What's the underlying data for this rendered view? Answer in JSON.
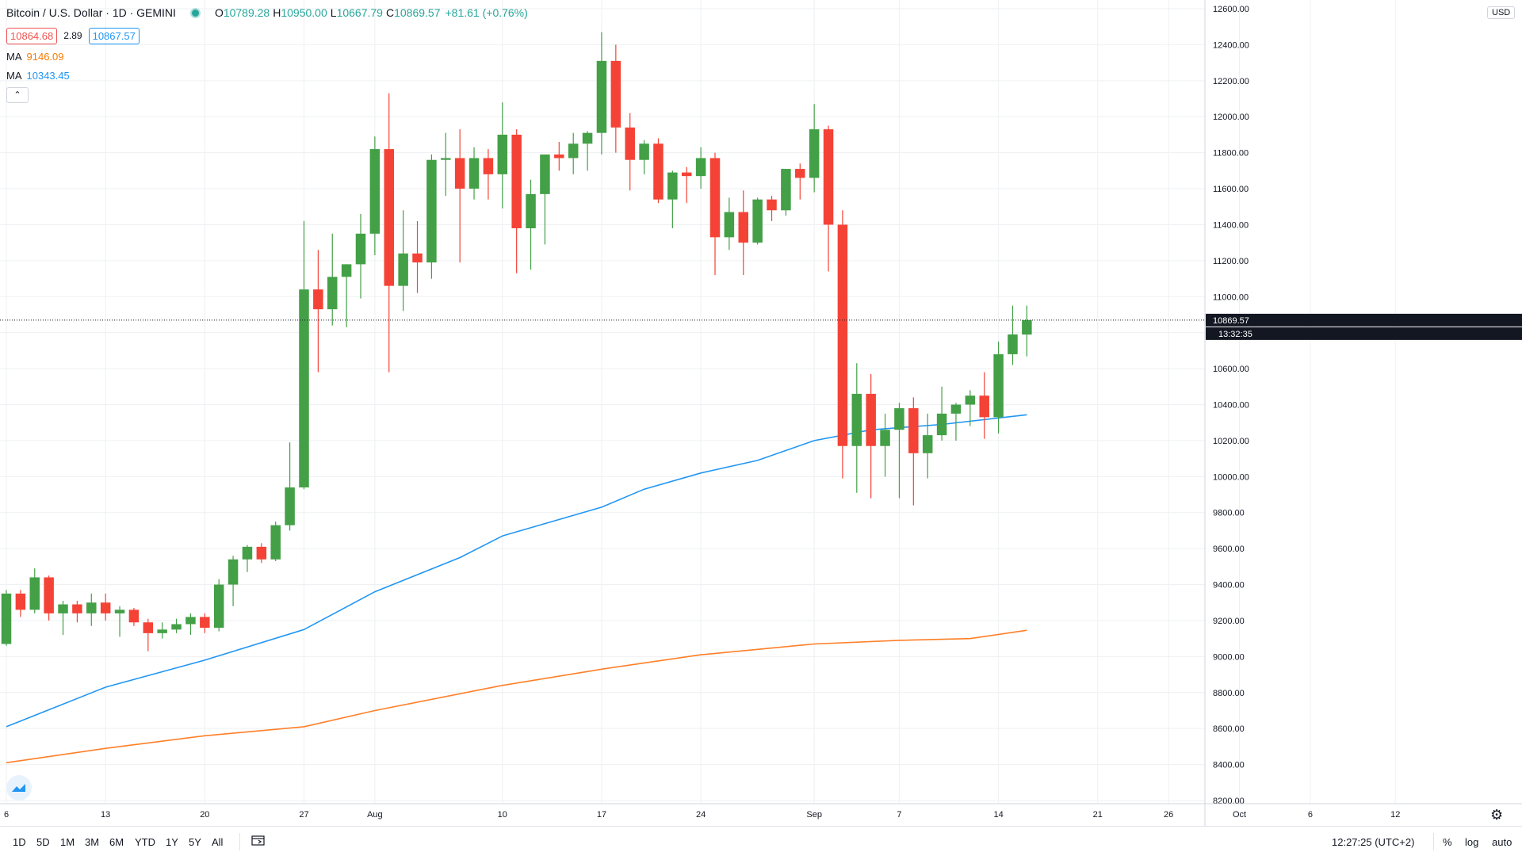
{
  "header": {
    "symbol_title": "Bitcoin / U.S. Dollar · 1D · GEMINI",
    "ohlc": {
      "open_label": "O",
      "open": "10789.28",
      "high_label": "H",
      "high": "10950.00",
      "low_label": "L",
      "low": "10667.79",
      "close_label": "C",
      "close": "10869.57",
      "change": "+81.61 (+0.76%)"
    },
    "bid": "10864.68",
    "spread": "2.89",
    "ask": "10867.57",
    "ma_orange_label": "MA",
    "ma_orange_value": "9146.09",
    "ma_blue_label": "MA",
    "ma_blue_value": "10343.45",
    "collapse_icon": "chevron-up-icon"
  },
  "price_axis": {
    "currency_button": "USD",
    "last_price_label": "10869.57",
    "countdown_label": "13:32:35",
    "settings_icon": "gear-icon"
  },
  "bottom_bar": {
    "ranges": [
      "1D",
      "5D",
      "1M",
      "3M",
      "6M",
      "YTD",
      "1Y",
      "5Y",
      "All"
    ],
    "date_range_icon": "calendar-icon",
    "time": "12:27:25 (UTC+2)",
    "percent_label": "%",
    "log_label": "log",
    "auto_label": "auto"
  },
  "colors": {
    "up": "#43a047",
    "down": "#f44336",
    "ma_orange": "#ff7f27",
    "ma_blue": "#2196f3",
    "grid": "#eef0f3",
    "last_price_line": "#131722"
  },
  "chart_data": {
    "type": "candlestick",
    "symbol": "Bitcoin / U.S. Dollar",
    "interval": "1D",
    "exchange": "GEMINI",
    "ylim": [
      8200,
      12600
    ],
    "y_ticks": [
      "8200.00",
      "8400.00",
      "8600.00",
      "8800.00",
      "9000.00",
      "9200.00",
      "9400.00",
      "9600.00",
      "9800.00",
      "10000.00",
      "10200.00",
      "10400.00",
      "10600.00",
      "10800.00",
      "11000.00",
      "11200.00",
      "11400.00",
      "11600.00",
      "11800.00",
      "12000.00",
      "12200.00",
      "12400.00",
      "12600.00"
    ],
    "y_ticks_values": [
      8200,
      8400,
      8600,
      8800,
      9000,
      9200,
      9400,
      9600,
      9800,
      10000,
      10200,
      10400,
      10600,
      10800,
      11000,
      11200,
      11400,
      11600,
      11800,
      12000,
      12200,
      12400,
      12600
    ],
    "x_ticks": [
      {
        "label": "6",
        "date": "2020-07-06"
      },
      {
        "label": "13",
        "date": "2020-07-13"
      },
      {
        "label": "20",
        "date": "2020-07-20"
      },
      {
        "label": "27",
        "date": "2020-07-27"
      },
      {
        "label": "Aug",
        "date": "2020-08-01"
      },
      {
        "label": "10",
        "date": "2020-08-10"
      },
      {
        "label": "17",
        "date": "2020-08-17"
      },
      {
        "label": "24",
        "date": "2020-08-24"
      },
      {
        "label": "Sep",
        "date": "2020-09-01"
      },
      {
        "label": "7",
        "date": "2020-09-07"
      },
      {
        "label": "14",
        "date": "2020-09-14"
      },
      {
        "label": "21",
        "date": "2020-09-21"
      },
      {
        "label": "26",
        "date": "2020-09-26"
      },
      {
        "label": "Oct",
        "date": "2020-10-01"
      },
      {
        "label": "6",
        "date": "2020-10-06"
      },
      {
        "label": "12",
        "date": "2020-10-12"
      }
    ],
    "x_range": [
      "2020-07-06",
      "2020-10-20"
    ],
    "last_price": 10869.57,
    "candles": [
      {
        "date": "2020-07-06",
        "o": 9070,
        "h": 9370,
        "l": 9060,
        "c": 9350
      },
      {
        "date": "2020-07-07",
        "o": 9350,
        "h": 9370,
        "l": 9220,
        "c": 9260
      },
      {
        "date": "2020-07-08",
        "o": 9260,
        "h": 9490,
        "l": 9240,
        "c": 9440
      },
      {
        "date": "2020-07-09",
        "o": 9440,
        "h": 9450,
        "l": 9200,
        "c": 9240
      },
      {
        "date": "2020-07-10",
        "o": 9240,
        "h": 9310,
        "l": 9120,
        "c": 9290
      },
      {
        "date": "2020-07-11",
        "o": 9290,
        "h": 9310,
        "l": 9190,
        "c": 9240
      },
      {
        "date": "2020-07-12",
        "o": 9240,
        "h": 9350,
        "l": 9170,
        "c": 9300
      },
      {
        "date": "2020-07-13",
        "o": 9300,
        "h": 9350,
        "l": 9200,
        "c": 9240
      },
      {
        "date": "2020-07-14",
        "o": 9240,
        "h": 9280,
        "l": 9110,
        "c": 9260
      },
      {
        "date": "2020-07-15",
        "o": 9260,
        "h": 9270,
        "l": 9170,
        "c": 9190
      },
      {
        "date": "2020-07-16",
        "o": 9190,
        "h": 9210,
        "l": 9030,
        "c": 9130
      },
      {
        "date": "2020-07-17",
        "o": 9130,
        "h": 9190,
        "l": 9100,
        "c": 9150
      },
      {
        "date": "2020-07-18",
        "o": 9150,
        "h": 9210,
        "l": 9130,
        "c": 9180
      },
      {
        "date": "2020-07-19",
        "o": 9180,
        "h": 9240,
        "l": 9120,
        "c": 9220
      },
      {
        "date": "2020-07-20",
        "o": 9220,
        "h": 9240,
        "l": 9130,
        "c": 9160
      },
      {
        "date": "2020-07-21",
        "o": 9160,
        "h": 9430,
        "l": 9140,
        "c": 9400
      },
      {
        "date": "2020-07-22",
        "o": 9400,
        "h": 9560,
        "l": 9280,
        "c": 9540
      },
      {
        "date": "2020-07-23",
        "o": 9540,
        "h": 9620,
        "l": 9470,
        "c": 9610
      },
      {
        "date": "2020-07-24",
        "o": 9610,
        "h": 9630,
        "l": 9520,
        "c": 9540
      },
      {
        "date": "2020-07-25",
        "o": 9540,
        "h": 9750,
        "l": 9530,
        "c": 9730
      },
      {
        "date": "2020-07-26",
        "o": 9730,
        "h": 10190,
        "l": 9700,
        "c": 9940
      },
      {
        "date": "2020-07-27",
        "o": 9940,
        "h": 11420,
        "l": 9930,
        "c": 11040
      },
      {
        "date": "2020-07-28",
        "o": 11040,
        "h": 11260,
        "l": 10580,
        "c": 10930
      },
      {
        "date": "2020-07-29",
        "o": 10930,
        "h": 11350,
        "l": 10840,
        "c": 11110
      },
      {
        "date": "2020-07-30",
        "o": 11110,
        "h": 11180,
        "l": 10830,
        "c": 11180
      },
      {
        "date": "2020-07-31",
        "o": 11180,
        "h": 11460,
        "l": 10990,
        "c": 11350
      },
      {
        "date": "2020-08-01",
        "o": 11350,
        "h": 11890,
        "l": 11230,
        "c": 11820
      },
      {
        "date": "2020-08-02",
        "o": 11820,
        "h": 12130,
        "l": 10580,
        "c": 11060
      },
      {
        "date": "2020-08-03",
        "o": 11060,
        "h": 11480,
        "l": 10920,
        "c": 11240
      },
      {
        "date": "2020-08-04",
        "o": 11240,
        "h": 11420,
        "l": 11020,
        "c": 11190
      },
      {
        "date": "2020-08-05",
        "o": 11190,
        "h": 11790,
        "l": 11100,
        "c": 11760
      },
      {
        "date": "2020-08-06",
        "o": 11760,
        "h": 11910,
        "l": 11560,
        "c": 11770
      },
      {
        "date": "2020-08-07",
        "o": 11770,
        "h": 11930,
        "l": 11190,
        "c": 11600
      },
      {
        "date": "2020-08-08",
        "o": 11600,
        "h": 11830,
        "l": 11540,
        "c": 11770
      },
      {
        "date": "2020-08-09",
        "o": 11770,
        "h": 11820,
        "l": 11540,
        "c": 11680
      },
      {
        "date": "2020-08-10",
        "o": 11680,
        "h": 12080,
        "l": 11490,
        "c": 11900
      },
      {
        "date": "2020-08-11",
        "o": 11900,
        "h": 11930,
        "l": 11130,
        "c": 11380
      },
      {
        "date": "2020-08-12",
        "o": 11380,
        "h": 11650,
        "l": 11150,
        "c": 11570
      },
      {
        "date": "2020-08-13",
        "o": 11570,
        "h": 11790,
        "l": 11290,
        "c": 11790
      },
      {
        "date": "2020-08-14",
        "o": 11790,
        "h": 11860,
        "l": 11700,
        "c": 11770
      },
      {
        "date": "2020-08-15",
        "o": 11770,
        "h": 11910,
        "l": 11680,
        "c": 11850
      },
      {
        "date": "2020-08-16",
        "o": 11850,
        "h": 11920,
        "l": 11700,
        "c": 11910
      },
      {
        "date": "2020-08-17",
        "o": 11910,
        "h": 12470,
        "l": 11790,
        "c": 12310
      },
      {
        "date": "2020-08-18",
        "o": 12310,
        "h": 12400,
        "l": 11800,
        "c": 11940
      },
      {
        "date": "2020-08-19",
        "o": 11940,
        "h": 12020,
        "l": 11590,
        "c": 11760
      },
      {
        "date": "2020-08-20",
        "o": 11760,
        "h": 11870,
        "l": 11680,
        "c": 11850
      },
      {
        "date": "2020-08-21",
        "o": 11850,
        "h": 11880,
        "l": 11520,
        "c": 11540
      },
      {
        "date": "2020-08-22",
        "o": 11540,
        "h": 11700,
        "l": 11380,
        "c": 11690
      },
      {
        "date": "2020-08-23",
        "o": 11690,
        "h": 11720,
        "l": 11520,
        "c": 11670
      },
      {
        "date": "2020-08-24",
        "o": 11670,
        "h": 11830,
        "l": 11600,
        "c": 11770
      },
      {
        "date": "2020-08-25",
        "o": 11770,
        "h": 11800,
        "l": 11120,
        "c": 11330
      },
      {
        "date": "2020-08-26",
        "o": 11330,
        "h": 11550,
        "l": 11260,
        "c": 11470
      },
      {
        "date": "2020-08-27",
        "o": 11470,
        "h": 11590,
        "l": 11120,
        "c": 11300
      },
      {
        "date": "2020-08-28",
        "o": 11300,
        "h": 11550,
        "l": 11290,
        "c": 11540
      },
      {
        "date": "2020-08-29",
        "o": 11540,
        "h": 11560,
        "l": 11420,
        "c": 11480
      },
      {
        "date": "2020-08-30",
        "o": 11480,
        "h": 11710,
        "l": 11450,
        "c": 11710
      },
      {
        "date": "2020-08-31",
        "o": 11710,
        "h": 11740,
        "l": 11540,
        "c": 11660
      },
      {
        "date": "2020-09-01",
        "o": 11660,
        "h": 12070,
        "l": 11580,
        "c": 11930
      },
      {
        "date": "2020-09-02",
        "o": 11930,
        "h": 11950,
        "l": 11140,
        "c": 11400
      },
      {
        "date": "2020-09-03",
        "o": 11400,
        "h": 11480,
        "l": 9990,
        "c": 10170
      },
      {
        "date": "2020-09-04",
        "o": 10170,
        "h": 10630,
        "l": 9910,
        "c": 10460
      },
      {
        "date": "2020-09-05",
        "o": 10460,
        "h": 10570,
        "l": 9880,
        "c": 10170
      },
      {
        "date": "2020-09-06",
        "o": 10170,
        "h": 10350,
        "l": 10000,
        "c": 10260
      },
      {
        "date": "2020-09-07",
        "o": 10260,
        "h": 10410,
        "l": 9880,
        "c": 10380
      },
      {
        "date": "2020-09-08",
        "o": 10380,
        "h": 10440,
        "l": 9840,
        "c": 10130
      },
      {
        "date": "2020-09-09",
        "o": 10130,
        "h": 10350,
        "l": 9990,
        "c": 10230
      },
      {
        "date": "2020-09-10",
        "o": 10230,
        "h": 10500,
        "l": 10200,
        "c": 10350
      },
      {
        "date": "2020-09-11",
        "o": 10350,
        "h": 10410,
        "l": 10200,
        "c": 10400
      },
      {
        "date": "2020-09-12",
        "o": 10400,
        "h": 10480,
        "l": 10280,
        "c": 10450
      },
      {
        "date": "2020-09-13",
        "o": 10450,
        "h": 10580,
        "l": 10210,
        "c": 10330
      },
      {
        "date": "2020-09-14",
        "o": 10330,
        "h": 10750,
        "l": 10240,
        "c": 10680
      },
      {
        "date": "2020-09-15",
        "o": 10680,
        "h": 10950,
        "l": 10620,
        "c": 10790
      },
      {
        "date": "2020-09-16",
        "o": 10789.28,
        "h": 10950,
        "l": 10667.79,
        "c": 10869.57
      }
    ],
    "series": [
      {
        "name": "MA",
        "color": "#f57c00",
        "last_value": 9146.09,
        "points": [
          [
            "2020-07-06",
            8410
          ],
          [
            "2020-07-13",
            8490
          ],
          [
            "2020-07-20",
            8560
          ],
          [
            "2020-07-27",
            8610
          ],
          [
            "2020-08-01",
            8700
          ],
          [
            "2020-08-10",
            8840
          ],
          [
            "2020-08-17",
            8930
          ],
          [
            "2020-08-24",
            9010
          ],
          [
            "2020-09-01",
            9070
          ],
          [
            "2020-09-07",
            9090
          ],
          [
            "2020-09-12",
            9100
          ],
          [
            "2020-09-16",
            9146.09
          ]
        ]
      },
      {
        "name": "MA",
        "color": "#2196f3",
        "last_value": 10343.45,
        "points": [
          [
            "2020-07-06",
            8610
          ],
          [
            "2020-07-13",
            8830
          ],
          [
            "2020-07-20",
            8980
          ],
          [
            "2020-07-27",
            9150
          ],
          [
            "2020-08-01",
            9360
          ],
          [
            "2020-08-07",
            9550
          ],
          [
            "2020-08-10",
            9670
          ],
          [
            "2020-08-17",
            9830
          ],
          [
            "2020-08-20",
            9930
          ],
          [
            "2020-08-24",
            10020
          ],
          [
            "2020-08-28",
            10090
          ],
          [
            "2020-09-01",
            10200
          ],
          [
            "2020-09-05",
            10260
          ],
          [
            "2020-09-10",
            10290
          ],
          [
            "2020-09-16",
            10343.45
          ]
        ]
      }
    ]
  }
}
